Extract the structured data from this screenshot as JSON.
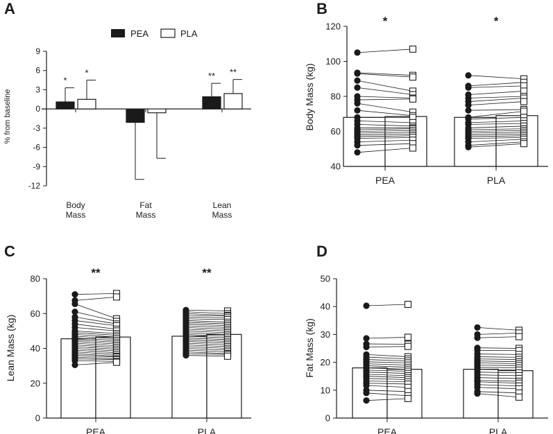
{
  "colors": {
    "dark": "#1a1a1a",
    "fill_pea": "#1a1a1a",
    "fill_pla": "#ffffff",
    "background": "#ffffff"
  },
  "chart_data": [
    {
      "panel": "A",
      "type": "bar",
      "ylabel": "% from baseline",
      "ylim": [
        -12,
        9
      ],
      "yticks": [
        9,
        6,
        3,
        0,
        -3,
        -6,
        -9,
        -12
      ],
      "categories": [
        [
          "Body",
          "Mass"
        ],
        [
          "Fat",
          "Mass"
        ],
        [
          "Lean",
          "Mass"
        ]
      ],
      "legend": {
        "position": "top",
        "entries": [
          "PEA",
          "PLA"
        ]
      },
      "series": [
        {
          "name": "PEA",
          "values": [
            1.1,
            -2.1,
            1.9
          ],
          "sd": [
            2.2,
            8.9,
            2.1
          ],
          "stars": [
            "*",
            "",
            "**"
          ]
        },
        {
          "name": "PLA",
          "values": [
            1.5,
            -0.6,
            2.4
          ],
          "sd": [
            3.0,
            7.1,
            2.2
          ],
          "stars": [
            "*",
            "",
            "**"
          ]
        }
      ]
    },
    {
      "panel": "B",
      "type": "bar",
      "ylabel": "Body Mass (kg)",
      "ylim": [
        40,
        120
      ],
      "yticks": [
        40,
        60,
        80,
        100,
        120
      ],
      "categories": [
        "PEA",
        "PLA"
      ],
      "group_stars": [
        "*",
        "*"
      ],
      "groups": [
        {
          "name": "PEA",
          "pre_mean": 68,
          "post_mean": 68.5,
          "pre": [
            105,
            93.5,
            93,
            89,
            85,
            80,
            78,
            76,
            72,
            68,
            66,
            64,
            62,
            61,
            60,
            59,
            58,
            57,
            56,
            54,
            52,
            48
          ],
          "post": [
            107,
            92,
            91,
            83,
            81,
            79,
            78.5,
            71,
            69,
            68,
            65,
            63,
            62,
            61.5,
            60.5,
            59.5,
            58.5,
            57.5,
            56.5,
            55,
            53,
            50.5
          ]
        },
        {
          "name": "PLA",
          "pre_mean": 68,
          "post_mean": 69,
          "pre": [
            92,
            86,
            85,
            81,
            79,
            77,
            75,
            72,
            68,
            67,
            65,
            64,
            62,
            61,
            60,
            59,
            58,
            57,
            56,
            54,
            52,
            51
          ],
          "post": [
            90,
            88,
            86,
            83,
            80,
            79,
            77,
            72.5,
            71.5,
            68,
            66,
            64.5,
            63,
            61.5,
            60.5,
            59.5,
            58.5,
            57.5,
            56.5,
            55.5,
            54,
            53
          ]
        }
      ]
    },
    {
      "panel": "C",
      "type": "bar",
      "ylabel": "Lean Mass (kg)",
      "ylim": [
        0,
        80
      ],
      "yticks": [
        0,
        20,
        40,
        60,
        80
      ],
      "categories": [
        "PEA",
        "PLA"
      ],
      "group_stars": [
        "**",
        "**"
      ],
      "groups": [
        {
          "name": "PEA",
          "pre_mean": 45.5,
          "post_mean": 46.5,
          "pre": [
            71,
            67.5,
            65.5,
            61,
            58,
            56,
            54,
            52,
            50,
            49,
            48,
            47,
            46,
            45,
            44,
            43,
            42,
            41,
            40,
            39,
            38,
            37,
            36,
            35,
            34,
            33,
            30.5
          ],
          "post": [
            71.5,
            69.5,
            57,
            55.5,
            54,
            53,
            51,
            50,
            48.5,
            47.5,
            46.5,
            45.5,
            44.5,
            43.5,
            42.5,
            41.5,
            40.5,
            39.5,
            38.5,
            37.5,
            36.5,
            35.5,
            35,
            34,
            33.5,
            32.5,
            32
          ]
        },
        {
          "name": "PLA",
          "pre_mean": 47,
          "post_mean": 48,
          "pre": [
            62,
            61,
            60,
            59,
            58,
            57,
            56,
            55,
            54,
            53,
            52,
            51,
            50,
            49,
            48,
            47,
            46,
            45,
            44,
            43,
            42,
            41,
            40,
            39,
            38,
            37,
            36
          ],
          "post": [
            61.5,
            60,
            59,
            58.5,
            57.5,
            56.5,
            55,
            54,
            53,
            52,
            51,
            50,
            49,
            48,
            47,
            46,
            45,
            44,
            43,
            42,
            41,
            40,
            39,
            38,
            37,
            36.5,
            35.5
          ]
        }
      ]
    },
    {
      "panel": "D",
      "type": "bar",
      "ylabel": "Fat Mass (kg)",
      "ylim": [
        0,
        50
      ],
      "yticks": [
        0,
        10,
        20,
        30,
        40,
        50
      ],
      "categories": [
        "PEA",
        "PLA"
      ],
      "group_stars": [
        "",
        ""
      ],
      "groups": [
        {
          "name": "PEA",
          "pre_mean": 18,
          "post_mean": 17.5,
          "pre": [
            40.3,
            28.6,
            26.6,
            25.5,
            22.8,
            21.9,
            21,
            20.2,
            19.5,
            18.8,
            18,
            17.2,
            16.5,
            15.7,
            15,
            14.2,
            13.3,
            12.5,
            11.7,
            10,
            9,
            6.3
          ],
          "post": [
            40.8,
            29,
            26.5,
            25.7,
            22,
            21.2,
            20.5,
            19.8,
            19,
            18.2,
            17.5,
            16.8,
            16,
            15.2,
            14.5,
            13.8,
            13,
            12.2,
            11,
            9.5,
            8,
            7
          ]
        },
        {
          "name": "PLA",
          "pre_mean": 17.5,
          "post_mean": 17,
          "pre": [
            32.5,
            30,
            28.8,
            25.2,
            24.3,
            23,
            22,
            21.2,
            20.5,
            19.8,
            19,
            18.2,
            17.5,
            16.5,
            15.5,
            14.5,
            13.5,
            13,
            12,
            11,
            9.5,
            8.8
          ],
          "post": [
            31.5,
            30.5,
            29.2,
            25,
            24.2,
            22.8,
            21.8,
            21,
            20.2,
            19.5,
            18.8,
            18,
            17.2,
            16.2,
            15.2,
            14.2,
            13.2,
            12.5,
            11.5,
            10.5,
            9,
            7.5
          ]
        }
      ]
    }
  ]
}
